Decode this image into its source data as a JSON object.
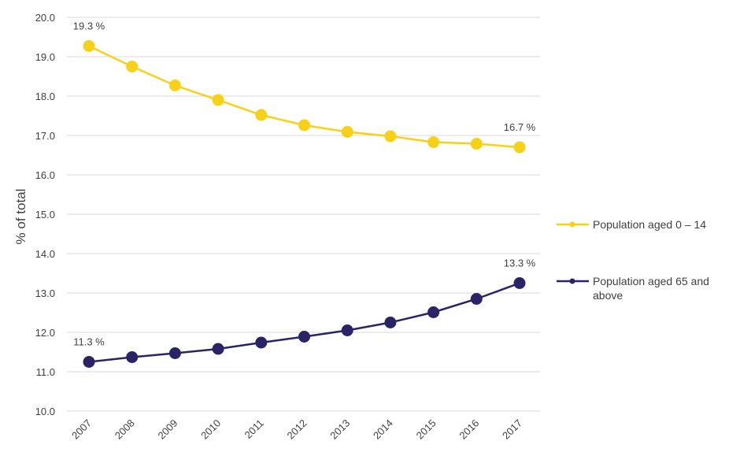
{
  "chart_data": {
    "type": "line",
    "title": "",
    "xlabel": "",
    "ylabel": "% of total",
    "ylim": [
      10.0,
      20.0
    ],
    "yticks": [
      "10.0",
      "11.0",
      "12.0",
      "13.0",
      "14.0",
      "15.0",
      "16.0",
      "17.0",
      "18.0",
      "19.0",
      "20.0"
    ],
    "categories": [
      "2007",
      "2008",
      "2009",
      "2010",
      "2011",
      "2012",
      "2013",
      "2014",
      "2015",
      "2016",
      "2017"
    ],
    "grid": true,
    "legend_position": "right",
    "series": [
      {
        "name": "Population aged 0 – 14",
        "legend_lines": [
          "Population aged 0 – 14"
        ],
        "color": "#f7d117",
        "values": [
          19.27,
          18.75,
          18.27,
          17.9,
          17.52,
          17.26,
          17.09,
          16.98,
          16.83,
          16.79,
          16.7
        ],
        "labels": [
          {
            "index": 0,
            "text": "19.3 %"
          },
          {
            "index": 10,
            "text": "16.7 %"
          }
        ]
      },
      {
        "name": "Population aged 65 and above",
        "legend_lines": [
          "Population aged 65 and",
          "above"
        ],
        "color": "#2a2365",
        "values": [
          11.25,
          11.37,
          11.47,
          11.58,
          11.74,
          11.89,
          12.05,
          12.25,
          12.51,
          12.85,
          13.25
        ],
        "labels": [
          {
            "index": 0,
            "text": "11.3 %"
          },
          {
            "index": 10,
            "text": "13.3 %"
          }
        ]
      }
    ]
  }
}
